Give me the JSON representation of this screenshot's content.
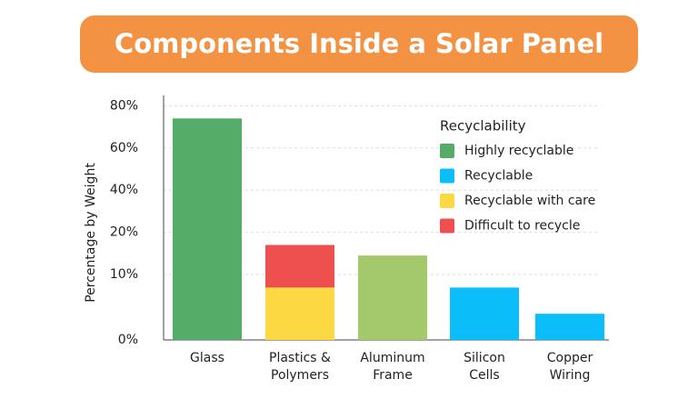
{
  "chart_data": {
    "type": "bar",
    "stacked": true,
    "title": "Components Inside a Solar Panel",
    "y_label": "Percentage by Weight",
    "categories": [
      [
        "Glass"
      ],
      [
        "Plastics &",
        "Polymers"
      ],
      [
        "Aluminum",
        "Frame"
      ],
      [
        "Silicon",
        "Cells"
      ],
      [
        "Copper",
        "Wiring"
      ]
    ],
    "legend_title": "Recyclability",
    "legend_position": "upper right",
    "series": [
      {
        "name": "Highly recyclable",
        "color": "#55ab68",
        "bar_colors": [
          "#55ab68",
          "#55ab68",
          "#a3c96a",
          "#55ab68",
          "#55ab68"
        ],
        "values": [
          74,
          null,
          14.5,
          null,
          null
        ]
      },
      {
        "name": "Recyclable",
        "color": "#0bbdf9",
        "values": [
          null,
          null,
          null,
          8,
          4
        ]
      },
      {
        "name": "Recyclable with care",
        "color": "#fcd843",
        "values": [
          null,
          8,
          null,
          null,
          null
        ]
      },
      {
        "name": "Difficult to recycle",
        "color": "#ee5050",
        "values": [
          null,
          9,
          null,
          null,
          null
        ]
      }
    ],
    "ylim": [
      0,
      80
    ],
    "yticks": [
      {
        "value": 0,
        "label": "0%"
      },
      {
        "value": 10,
        "label": "10%"
      },
      {
        "value": 20,
        "label": "20%"
      },
      {
        "value": 40,
        "label": "40%"
      },
      {
        "value": 60,
        "label": "60%"
      },
      {
        "value": 80,
        "label": "80%"
      }
    ],
    "grid": true
  }
}
